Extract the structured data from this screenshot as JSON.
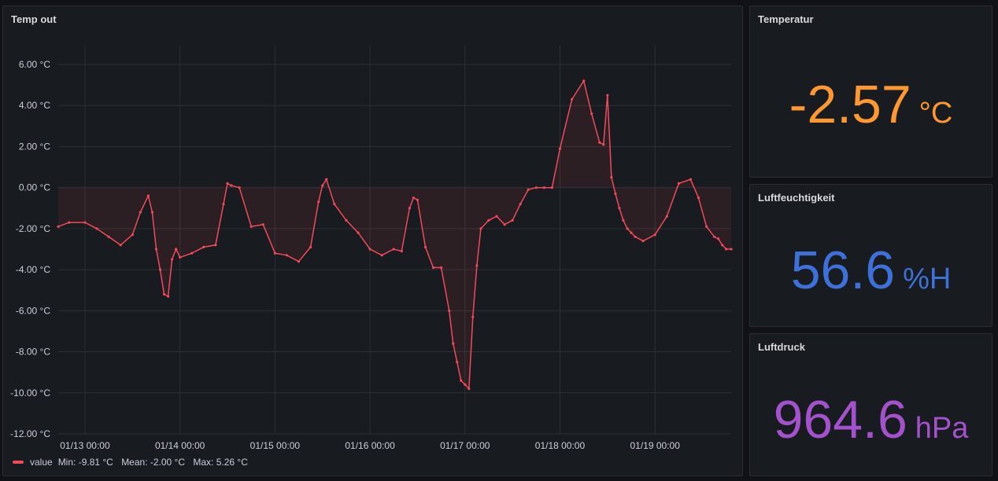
{
  "timeseries": {
    "title": "Temp out",
    "legend": {
      "series_name": "value",
      "min": "Min: -9.81 °C",
      "mean": "Mean: -2.00 °C",
      "max": "Max: 5.26 °C"
    }
  },
  "chart_data": {
    "type": "area",
    "line_color": "#f2495c",
    "ylim": [
      -12,
      7
    ],
    "yticks": [
      6,
      4,
      2,
      0,
      -2,
      -4,
      -6,
      -8,
      -10,
      -12
    ],
    "ytick_labels": [
      "6.00 °C",
      "4.00 °C",
      "2.00 °C",
      "0.00 °C",
      "-2.00 °C",
      "-4.00 °C",
      "-6.00 °C",
      "-8.00 °C",
      "-10.00 °C",
      "-12.00 °C"
    ],
    "xlim": [
      "01/12 17:15",
      "01/19 19:15"
    ],
    "xticks": [
      "01/13 00:00",
      "01/14 00:00",
      "01/15 00:00",
      "01/16 00:00",
      "01/17 00:00",
      "01/18 00:00",
      "01/19 00:00"
    ],
    "x": [
      "01/12 17:15",
      "01/12 20:00",
      "01/13 00:00",
      "01/13 03:00",
      "01/13 06:00",
      "01/13 09:00",
      "01/13 12:00",
      "01/13 14:00",
      "01/13 16:00",
      "01/13 17:00",
      "01/13 18:00",
      "01/13 19:00",
      "01/13 20:00",
      "01/13 21:00",
      "01/13 22:00",
      "01/13 23:00",
      "01/14 00:00",
      "01/14 03:00",
      "01/14 06:00",
      "01/14 09:00",
      "01/14 11:00",
      "01/14 12:00",
      "01/14 13:00",
      "01/14 15:00",
      "01/14 18:00",
      "01/14 21:00",
      "01/15 00:00",
      "01/15 03:00",
      "01/15 06:00",
      "01/15 09:00",
      "01/15 11:00",
      "01/15 12:00",
      "01/15 13:00",
      "01/15 15:00",
      "01/15 18:00",
      "01/15 21:00",
      "01/16 00:00",
      "01/16 03:00",
      "01/16 06:00",
      "01/16 08:00",
      "01/16 10:00",
      "01/16 11:00",
      "01/16 12:00",
      "01/16 14:00",
      "01/16 16:00",
      "01/16 18:00",
      "01/16 20:00",
      "01/16 21:00",
      "01/16 22:00",
      "01/16 23:00",
      "01/17 00:00",
      "01/17 01:00",
      "01/17 02:00",
      "01/17 03:00",
      "01/17 04:00",
      "01/17 06:00",
      "01/17 08:00",
      "01/17 10:00",
      "01/17 12:00",
      "01/17 14:00",
      "01/17 16:00",
      "01/17 18:00",
      "01/17 20:00",
      "01/17 22:00",
      "01/18 00:00",
      "01/18 03:00",
      "01/18 06:00",
      "01/18 08:00",
      "01/18 10:00",
      "01/18 11:00",
      "01/18 12:00",
      "01/18 13:00",
      "01/18 14:00",
      "01/18 15:00",
      "01/18 16:00",
      "01/18 17:00",
      "01/18 18:00",
      "01/18 19:00",
      "01/18 21:00",
      "01/19 00:00",
      "01/19 03:00",
      "01/19 06:00",
      "01/19 09:00",
      "01/19 11:00",
      "01/19 13:00",
      "01/19 15:00",
      "01/19 16:00",
      "01/19 17:00",
      "01/19 18:00",
      "01/19 19:15"
    ],
    "values": [
      -1.9,
      -1.7,
      -1.7,
      -2.0,
      -2.4,
      -2.8,
      -2.3,
      -1.2,
      -0.4,
      -1.2,
      -3.0,
      -4.0,
      -5.2,
      -5.3,
      -3.5,
      -3.0,
      -3.4,
      -3.2,
      -2.9,
      -2.8,
      -0.8,
      0.2,
      0.1,
      0.0,
      -1.9,
      -1.8,
      -3.2,
      -3.3,
      -3.6,
      -2.9,
      -0.7,
      0.1,
      0.4,
      -0.8,
      -1.6,
      -2.2,
      -3.0,
      -3.3,
      -3.0,
      -3.1,
      -1.0,
      -0.5,
      -0.6,
      -2.9,
      -3.9,
      -3.9,
      -6.0,
      -7.6,
      -8.5,
      -9.4,
      -9.6,
      -9.8,
      -6.3,
      -3.8,
      -2.0,
      -1.6,
      -1.4,
      -1.8,
      -1.6,
      -0.8,
      -0.1,
      0.0,
      0.0,
      0.0,
      1.9,
      4.3,
      5.2,
      3.6,
      2.2,
      2.1,
      4.5,
      0.5,
      -0.3,
      -1.0,
      -1.6,
      -2.0,
      -2.2,
      -2.4,
      -2.6,
      -2.3,
      -1.4,
      0.2,
      0.4,
      -0.5,
      -1.9,
      -2.4,
      -2.5,
      -2.8,
      -3.0,
      -3.0
    ]
  },
  "stats": [
    {
      "title": "Temperatur",
      "value": "-2.57",
      "unit": "°C",
      "color": "#ff9830"
    },
    {
      "title": "Luftfeuchtigkeit",
      "value": "56.6",
      "unit": "%H",
      "color": "#3d71d9"
    },
    {
      "title": "Luftdruck",
      "value": "964.6",
      "unit": "hPa",
      "color": "#a352cc"
    }
  ],
  "colors": {
    "background": "#111217",
    "panel": "#181b1f",
    "grid": "#2c3038",
    "axis_text": "#ccccdc"
  }
}
